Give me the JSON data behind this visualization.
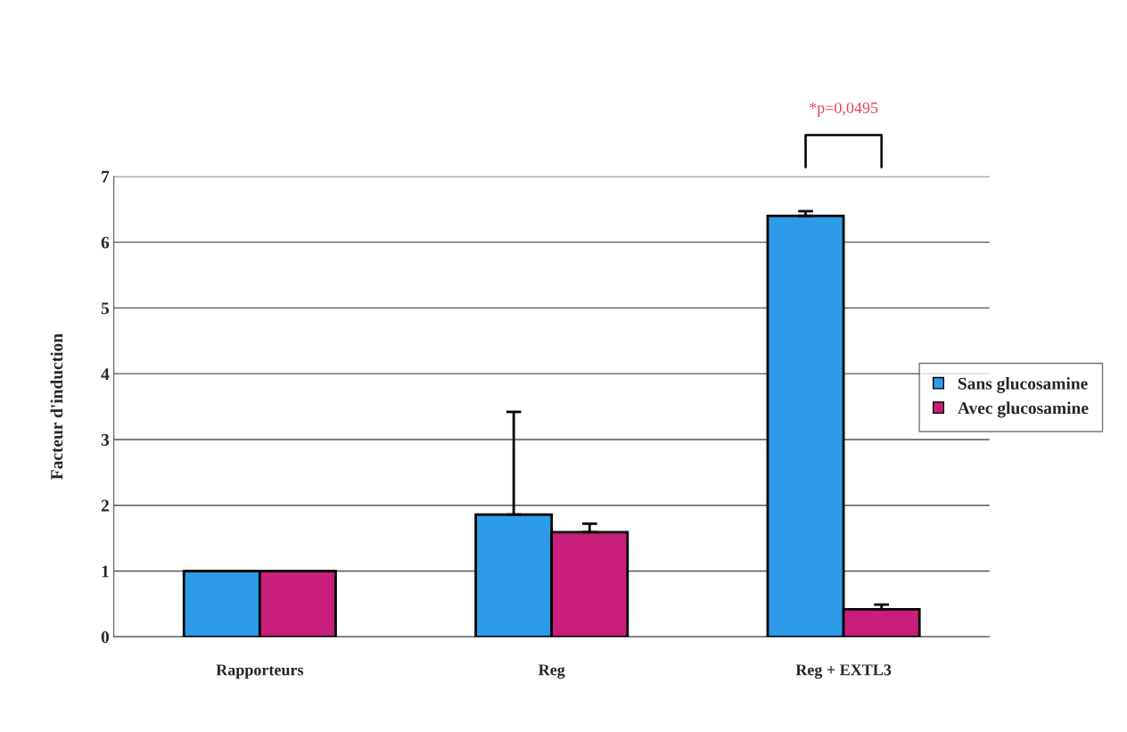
{
  "chart_data": {
    "type": "bar",
    "ylabel": "Facteur d'induction",
    "categories": [
      "Rapporteurs",
      "Reg",
      "Reg + EXTL3"
    ],
    "series": [
      {
        "name": "Sans glucosamine",
        "color": "#2e9be8",
        "values": [
          1,
          1.86,
          6.4
        ],
        "errors": [
          null,
          [
            1.86,
            3.42
          ],
          [
            6.4,
            6.47
          ]
        ]
      },
      {
        "name": "Avec glucosamine",
        "color": "#c8207a",
        "values": [
          1,
          1.59,
          0.42
        ],
        "errors": [
          null,
          [
            1.59,
            1.72
          ],
          [
            0.42,
            0.49
          ]
        ]
      }
    ],
    "ylim": [
      0,
      7
    ],
    "yticks": [
      0,
      1,
      2,
      3,
      4,
      5,
      6,
      7
    ],
    "grid": "y",
    "legend": "right",
    "annotations": [
      "*p=0,0495"
    ]
  }
}
